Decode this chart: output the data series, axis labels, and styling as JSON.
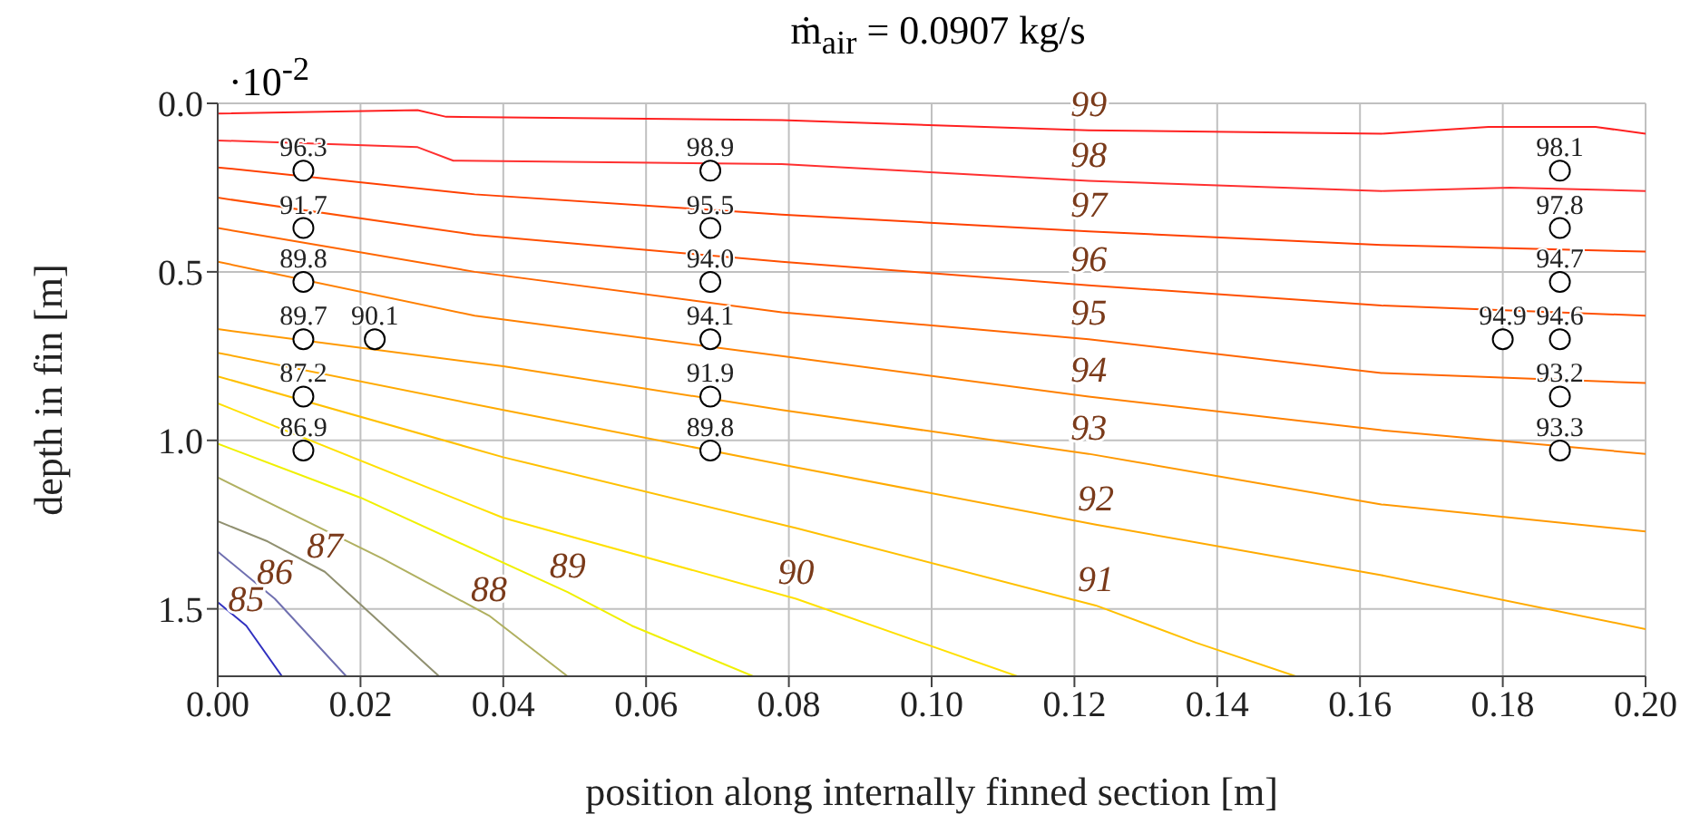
{
  "chart_data": {
    "type": "line",
    "title": "ṁ$_{air}$ = 0.0907 kg/s",
    "xlabel": "position along internally finned section [m]",
    "ylabel": "depth in fin [m]",
    "annotations": [
      "·10$^{-2}$",
      {
        "text": "96.3",
        "x": 0.012,
        "y": 0.2
      },
      {
        "text": "91.7",
        "x": 0.012,
        "y": 0.37
      },
      {
        "text": "89.8",
        "x": 0.012,
        "y": 0.53
      },
      {
        "text": "89.7",
        "x": 0.012,
        "y": 0.7
      },
      {
        "text": "87.2",
        "x": 0.012,
        "y": 0.87
      },
      {
        "text": "86.9",
        "x": 0.012,
        "y": 1.03
      },
      {
        "text": "90.1",
        "x": 0.022,
        "y": 0.7
      },
      {
        "text": "98.9",
        "x": 0.069,
        "y": 0.2
      },
      {
        "text": "95.5",
        "x": 0.069,
        "y": 0.37
      },
      {
        "text": "94.0",
        "x": 0.069,
        "y": 0.53
      },
      {
        "text": "94.1",
        "x": 0.069,
        "y": 0.7
      },
      {
        "text": "91.9",
        "x": 0.069,
        "y": 0.87
      },
      {
        "text": "89.8",
        "x": 0.069,
        "y": 1.03
      },
      {
        "text": "94.9",
        "x": 0.18,
        "y": 0.7
      },
      {
        "text": "98.1",
        "x": 0.188,
        "y": 0.2
      },
      {
        "text": "97.8",
        "x": 0.188,
        "y": 0.37
      },
      {
        "text": "94.7",
        "x": 0.188,
        "y": 0.53
      },
      {
        "text": "94.6",
        "x": 0.188,
        "y": 0.7
      },
      {
        "text": "93.2",
        "x": 0.188,
        "y": 0.87
      },
      {
        "text": "93.3",
        "x": 0.188,
        "y": 1.03
      }
    ],
    "xlim": [
      0,
      0.2
    ],
    "xticks": [
      {
        "value": 0,
        "label": "0.00"
      },
      {
        "value": 0.02,
        "label": "0.02"
      },
      {
        "value": 0.04,
        "label": "0.04"
      },
      {
        "value": 0.06,
        "label": "0.06"
      },
      {
        "value": 0.08,
        "label": "0.08"
      },
      {
        "value": 0.1,
        "label": "0.10"
      },
      {
        "value": 0.12,
        "label": "0.12"
      },
      {
        "value": 0.14,
        "label": "0.14"
      },
      {
        "value": 0.16,
        "label": "0.16"
      },
      {
        "value": 0.18,
        "label": "0.18"
      },
      {
        "value": 0.2,
        "label": "0.20"
      }
    ],
    "ylim": [
      1.7,
      0
    ],
    "yticks": [
      {
        "value": 0,
        "label": "0.0"
      },
      0.5,
      {
        "value": 1,
        "label": "1.0"
      },
      1.5
    ],
    "grid": true,
    "series": [
      {
        "name": "99",
        "color": "#ff2020",
        "x": [
          0,
          0.028,
          0.032,
          0.079,
          0.122,
          0.163,
          0.178,
          0.193,
          0.2
        ],
        "values": [
          0.03,
          0.02,
          0.04,
          0.05,
          0.08,
          0.09,
          0.07,
          0.07,
          0.09
        ]
      },
      {
        "name": "98",
        "color": "#ff3030",
        "x": [
          0,
          0.028,
          0.033,
          0.079,
          0.122,
          0.163,
          0.181,
          0.2
        ],
        "values": [
          0.11,
          0.13,
          0.17,
          0.18,
          0.23,
          0.26,
          0.25,
          0.26
        ]
      },
      {
        "name": "97",
        "color": "#ff4000",
        "x": [
          0,
          0.036,
          0.079,
          0.122,
          0.163,
          0.2
        ],
        "values": [
          0.19,
          0.27,
          0.33,
          0.38,
          0.42,
          0.44
        ]
      },
      {
        "name": "96",
        "color": "#ff5000",
        "x": [
          0,
          0.036,
          0.079,
          0.122,
          0.163,
          0.2
        ],
        "values": [
          0.28,
          0.39,
          0.47,
          0.54,
          0.6,
          0.63
        ]
      },
      {
        "name": "95",
        "color": "#ff6600",
        "x": [
          0,
          0.036,
          0.079,
          0.122,
          0.163,
          0.2
        ],
        "values": [
          0.37,
          0.5,
          0.62,
          0.7,
          0.8,
          0.83
        ]
      },
      {
        "name": "94",
        "color": "#ff8000",
        "x": [
          0,
          0.036,
          0.079,
          0.122,
          0.163,
          0.2
        ],
        "values": [
          0.47,
          0.63,
          0.75,
          0.87,
          0.97,
          1.04
        ]
      },
      {
        "name": "93",
        "color": "#ff9900",
        "x": [
          0,
          0.04,
          0.079,
          0.122,
          0.163,
          0.2
        ],
        "values": [
          0.67,
          0.78,
          0.91,
          1.04,
          1.19,
          1.27
        ]
      },
      {
        "name": "92",
        "color": "#ffaa00",
        "x": [
          0,
          0.04,
          0.081,
          0.123,
          0.163,
          0.2
        ],
        "values": [
          0.74,
          0.91,
          1.08,
          1.25,
          1.4,
          1.56
        ]
      },
      {
        "name": "91",
        "color": "#ffc000",
        "x": [
          0,
          0.04,
          0.081,
          0.123,
          0.137,
          0.151
        ],
        "values": [
          0.81,
          1.05,
          1.26,
          1.49,
          1.6,
          1.7
        ]
      },
      {
        "name": "90",
        "color": "#ffe000",
        "x": [
          0,
          0.04,
          0.081,
          0.112
        ],
        "values": [
          0.89,
          1.23,
          1.47,
          1.7
        ]
      },
      {
        "name": "89",
        "color": "#f0f000",
        "x": [
          0,
          0.02,
          0.049,
          0.058,
          0.075
        ],
        "values": [
          1.01,
          1.17,
          1.45,
          1.55,
          1.7
        ]
      },
      {
        "name": "88",
        "color": "#b0b060",
        "x": [
          0,
          0.023,
          0.038,
          0.049
        ],
        "values": [
          1.11,
          1.35,
          1.52,
          1.7
        ]
      },
      {
        "name": "87",
        "color": "#909070",
        "x": [
          0,
          0.007,
          0.015,
          0.031
        ],
        "values": [
          1.24,
          1.3,
          1.39,
          1.7
        ]
      },
      {
        "name": "86",
        "color": "#7070b0",
        "x": [
          0,
          0.008,
          0.018
        ],
        "values": [
          1.33,
          1.47,
          1.7
        ]
      },
      {
        "name": "85",
        "color": "#3030c0",
        "x": [
          0,
          0.004,
          0.009
        ],
        "values": [
          1.48,
          1.55,
          1.7
        ]
      },
      {
        "type": "scatter",
        "marker": "circle",
        "color": "#000000",
        "x": [
          0.012,
          0.012,
          0.012,
          0.012,
          0.012,
          0.012,
          0.022,
          0.069,
          0.069,
          0.069,
          0.069,
          0.069,
          0.069,
          0.18,
          0.188,
          0.188,
          0.188,
          0.188,
          0.188,
          0.188
        ],
        "values": [
          0.2,
          0.37,
          0.53,
          0.7,
          0.87,
          1.03,
          0.7,
          0.2,
          0.37,
          0.53,
          0.7,
          0.87,
          1.03,
          0.7,
          0.2,
          0.37,
          0.53,
          0.7,
          0.87,
          1.03
        ]
      }
    ]
  }
}
